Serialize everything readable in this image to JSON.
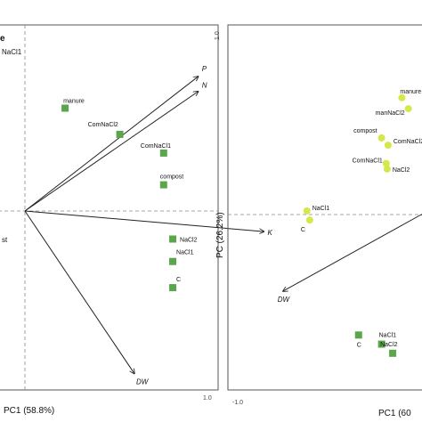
{
  "chart_data": [
    {
      "type": "scatter",
      "panel": "left",
      "cropped_title_fragment": "e",
      "xlabel": "PC1 (58.8%)",
      "ylabel": "",
      "x_tick_labels": [
        "1.0"
      ],
      "xlim": [
        -0.75,
        1.0
      ],
      "ylim": [
        -1.0,
        1.0
      ],
      "grid": false,
      "series_color": "#5aa64b",
      "points": [
        {
          "label": "manure",
          "x": 0.22,
          "y": 0.55
        },
        {
          "label": "ComNaCl2",
          "x": 0.52,
          "y": 0.41
        },
        {
          "label": "ComNaCl1",
          "x": 0.76,
          "y": 0.31
        },
        {
          "label": "compost",
          "x": 0.76,
          "y": 0.14
        },
        {
          "label": "NaCl2",
          "x": 0.81,
          "y": -0.15
        },
        {
          "label": "NaCl1",
          "x": 0.81,
          "y": -0.27
        },
        {
          "label": "C",
          "x": 0.81,
          "y": -0.41
        }
      ],
      "cropped_labels": [
        {
          "label": "NaCl1",
          "x": -0.72,
          "y": 0.9
        },
        {
          "label": "st",
          "x": -0.72,
          "y": -0.17
        }
      ],
      "vectors": [
        {
          "label": "P",
          "x": 0.95,
          "y": 0.72
        },
        {
          "label": "N",
          "x": 0.95,
          "y": 0.64
        },
        {
          "label": "K",
          "x": 1.31,
          "y": -0.11
        },
        {
          "label": "DW",
          "x": 0.6,
          "y": -0.87
        }
      ]
    },
    {
      "type": "scatter",
      "panel": "right",
      "xlabel": "PC1 (60",
      "ylabel": "PC (26.2%)",
      "x_tick_labels": [
        "-1.0"
      ],
      "y_tick_labels": [
        "1.0"
      ],
      "xlim": [
        -1.0,
        0.95
      ],
      "ylim": [
        -1.0,
        1.0
      ],
      "grid": false,
      "series": [
        {
          "marker": "circle",
          "color": "#d4e84a",
          "points": [
            {
              "label": "manure",
              "x": 0.79,
              "y": 0.64
            },
            {
              "label": "manNaCl2",
              "x": 0.86,
              "y": 0.58
            },
            {
              "label": "ComNaCl2",
              "x": 0.64,
              "y": 0.38
            },
            {
              "label": "compost",
              "x": 0.57,
              "y": 0.42
            },
            {
              "label": "ComNaCl1",
              "x": 0.62,
              "y": 0.28
            },
            {
              "label": "NaCl2",
              "x": 0.63,
              "y": 0.25
            },
            {
              "label": "NaCl1",
              "x": -0.24,
              "y": 0.02
            },
            {
              "label": "C",
              "x": -0.21,
              "y": -0.03
            }
          ]
        },
        {
          "marker": "square",
          "color": "#5aa64b",
          "points": [
            {
              "label": "C",
              "x": 0.32,
              "y": -0.66
            },
            {
              "label": "NaCl1",
              "x": 0.57,
              "y": -0.71
            },
            {
              "label": "NaCl2",
              "x": 0.69,
              "y": -0.76
            }
          ]
        }
      ],
      "vectors": [
        {
          "label": "DW",
          "x": -0.5,
          "y": -0.42
        },
        {
          "label": "",
          "x": 1.1,
          "y": 0.02
        },
        {
          "label": "",
          "x": 1.1,
          "y": -0.02
        },
        {
          "label": "",
          "x": 1.1,
          "y": 0.06
        },
        {
          "label": "",
          "x": 1.1,
          "y": -0.06
        }
      ]
    }
  ]
}
